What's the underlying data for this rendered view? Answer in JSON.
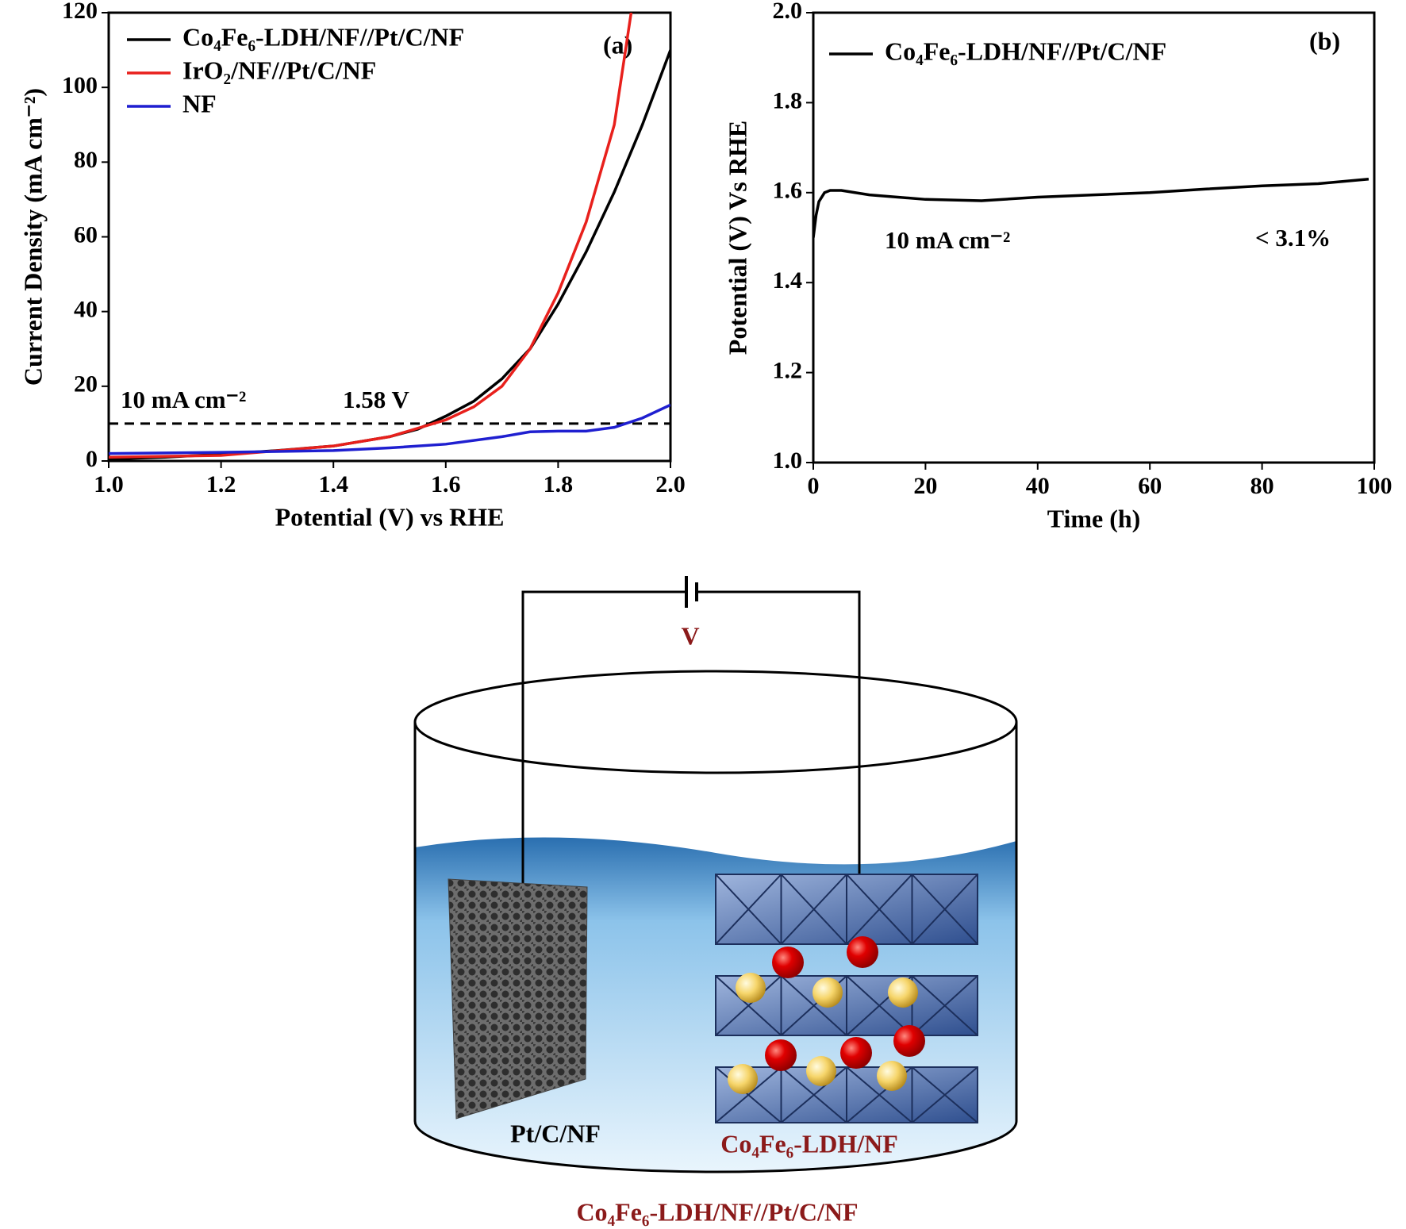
{
  "chart_data": [
    {
      "type": "line",
      "panel_label": "(a)",
      "x_label": "Potential (V) vs RHE",
      "y_label": "Current Density (mA cm⁻²)",
      "xlim": [
        1.0,
        2.0
      ],
      "ylim": [
        0,
        120
      ],
      "xticks": [
        {
          "value": 1.0,
          "label": "1.0"
        },
        {
          "value": 1.2,
          "label": "1.2"
        },
        {
          "value": 1.4,
          "label": "1.4"
        },
        {
          "value": 1.6,
          "label": "1.6"
        },
        {
          "value": 1.8,
          "label": "1.8"
        },
        {
          "value": 2.0,
          "label": "2.0"
        }
      ],
      "yticks": [
        0,
        20,
        40,
        60,
        80,
        100,
        120
      ],
      "reference_line": 10,
      "annotations": [
        "10 mA cm⁻²",
        "1.58 V"
      ],
      "series": [
        {
          "name": "Co₄Fe₆-LDH/NF//Pt/C/NF",
          "color": "#000000",
          "x": [
            1.0,
            1.1,
            1.2,
            1.3,
            1.4,
            1.5,
            1.55,
            1.6,
            1.65,
            1.7,
            1.75,
            1.8,
            1.85,
            1.9,
            1.95,
            2.0
          ],
          "values": [
            0.5,
            1,
            1.8,
            2.8,
            4,
            6.5,
            8.5,
            12,
            16,
            22,
            30,
            42,
            56,
            72,
            90,
            110
          ]
        },
        {
          "name": "IrO₂/NF//Pt/C/NF",
          "color": "#e8201c",
          "x": [
            1.0,
            1.2,
            1.4,
            1.5,
            1.6,
            1.65,
            1.7,
            1.75,
            1.8,
            1.85,
            1.9,
            1.93
          ],
          "values": [
            1,
            1.5,
            4,
            6.5,
            11,
            14.5,
            20,
            30,
            45,
            64,
            90,
            120
          ]
        },
        {
          "name": "NF",
          "color": "#1f1fd0",
          "x": [
            1.0,
            1.2,
            1.4,
            1.5,
            1.6,
            1.7,
            1.75,
            1.8,
            1.85,
            1.9,
            1.95,
            2.0
          ],
          "values": [
            2,
            2.3,
            2.8,
            3.5,
            4.5,
            6.5,
            7.8,
            8,
            8,
            9,
            11.5,
            15
          ]
        }
      ]
    },
    {
      "type": "line",
      "panel_label": "(b)",
      "x_label": "Time (h)",
      "y_label": "Potential (V) Vs RHE",
      "xlim": [
        0,
        100
      ],
      "ylim": [
        1.0,
        2.0
      ],
      "xticks": [
        0,
        20,
        40,
        60,
        80,
        100
      ],
      "yticks": [
        {
          "value": 1.0,
          "label": "1.0"
        },
        {
          "value": 1.2,
          "label": "1.2"
        },
        {
          "value": 1.4,
          "label": "1.4"
        },
        {
          "value": 1.6,
          "label": "1.6"
        },
        {
          "value": 1.8,
          "label": "1.8"
        },
        {
          "value": 2.0,
          "label": "2.0"
        }
      ],
      "annotations": [
        "10 mA cm⁻²",
        "< 3.1%"
      ],
      "series": [
        {
          "name": "Co₄Fe₆-LDH/NF//Pt/C/NF",
          "color": "#000000",
          "x": [
            0,
            0.5,
            1,
            2,
            3,
            5,
            10,
            20,
            30,
            40,
            50,
            60,
            70,
            80,
            90,
            99
          ],
          "values": [
            1.5,
            1.55,
            1.58,
            1.6,
            1.605,
            1.605,
            1.595,
            1.585,
            1.582,
            1.59,
            1.595,
            1.6,
            1.608,
            1.615,
            1.62,
            1.63
          ]
        }
      ]
    }
  ],
  "diagram": {
    "voltage_label": "V",
    "cathode_label": "Pt/C/NF",
    "anode_label": "Co₄Fe₆-LDH/NF",
    "cell_label": "Co₄Fe₆-LDH/NF//Pt/C/NF"
  }
}
